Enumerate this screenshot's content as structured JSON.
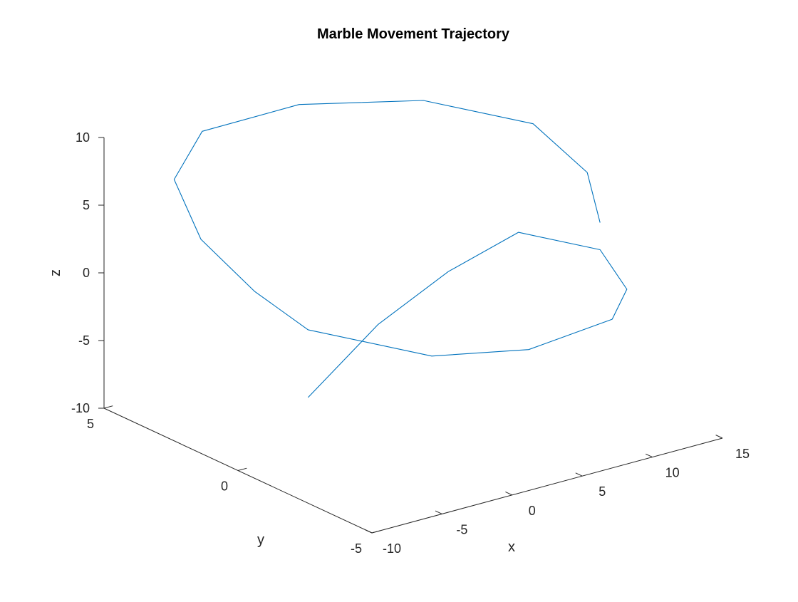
{
  "chart_data": {
    "type": "line",
    "projection": "3d",
    "title": "Marble Movement Trajectory",
    "xlabel": "x",
    "ylabel": "y",
    "zlabel": "z",
    "xlim": [
      -10,
      15
    ],
    "ylim": [
      -5,
      5
    ],
    "zlim": [
      -10,
      10
    ],
    "xticks": [
      -10,
      -5,
      0,
      5,
      10,
      15
    ],
    "yticks": [
      -5,
      0,
      5
    ],
    "zticks": [
      -10,
      -5,
      0,
      5,
      10
    ],
    "grid": false,
    "line_color": "#0072BD",
    "series": [
      {
        "points": [
          [
            -5,
            0,
            -6
          ],
          [
            0,
            0,
            -2
          ],
          [
            5,
            0,
            0.5
          ],
          [
            10,
            0,
            2
          ],
          [
            12,
            -2,
            2
          ],
          [
            12,
            -3,
            0
          ],
          [
            10,
            -3.5,
            -1.2
          ],
          [
            5,
            -3,
            -2.5
          ],
          [
            0,
            -2,
            -2.5
          ],
          [
            -5,
            0,
            -1
          ],
          [
            -5,
            2,
            0
          ],
          [
            -5,
            4,
            2
          ],
          [
            -5,
            5,
            5.5
          ],
          [
            -3,
            5,
            8.5
          ],
          [
            2,
            4,
            10
          ],
          [
            8,
            2.5,
            10
          ],
          [
            12,
            0.5,
            9
          ],
          [
            13,
            -1,
            6.5
          ],
          [
            12,
            -2,
            4
          ]
        ]
      }
    ]
  }
}
